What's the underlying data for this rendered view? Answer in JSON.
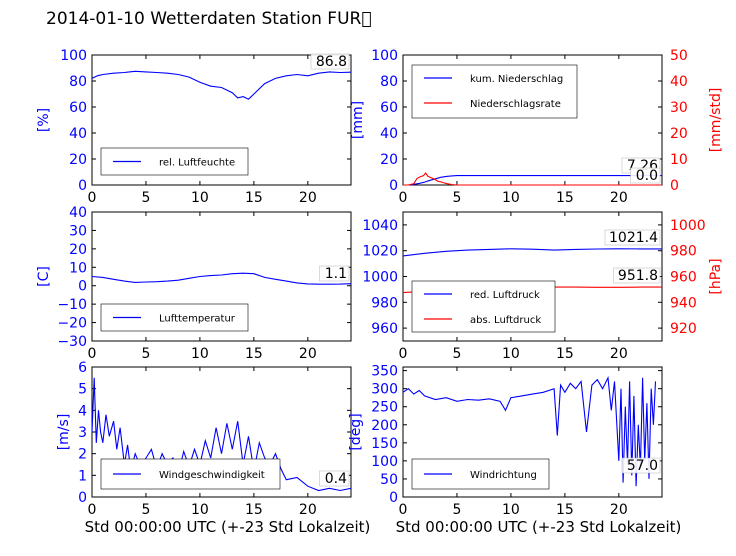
{
  "title": "2014-01-10 Wetterdaten Station FUR\u0000",
  "colors": {
    "blue": "#0000ff",
    "red": "#ff0000",
    "black": "#000000"
  },
  "chart_data": [
    {
      "type": "line",
      "panel": "humidity",
      "ylabel": "[%]",
      "xlabel": "",
      "xlim": [
        0,
        24
      ],
      "ylim": [
        0,
        100
      ],
      "xticks": [
        "0",
        "5",
        "10",
        "15",
        "20"
      ],
      "yticks": [
        "0",
        "20",
        "40",
        "60",
        "80",
        "100"
      ],
      "value_box": "86.8",
      "legend": {
        "placement": "lower-left",
        "entries": [
          "rel. Luftfeuchte"
        ]
      },
      "series": [
        {
          "name": "rel. Luftfeuchte",
          "color": "#0000ff",
          "x": [
            0,
            0.5,
            1,
            2,
            3,
            4,
            5,
            6,
            7,
            8,
            9,
            10,
            11,
            12,
            12.5,
            13,
            13.5,
            14,
            14.5,
            15,
            16,
            17,
            18,
            19,
            20,
            21,
            22,
            23,
            24
          ],
          "y": [
            82,
            84,
            85,
            86,
            86.5,
            87.5,
            87,
            86.5,
            86,
            85,
            83,
            79,
            76,
            75,
            73,
            71,
            67,
            68,
            66,
            70,
            78,
            82,
            84,
            85,
            84,
            86,
            87,
            86.5,
            86.8
          ]
        }
      ]
    },
    {
      "type": "line",
      "panel": "precipitation",
      "ylabel": "[mm]",
      "y2label": "[mm/std]",
      "xlim": [
        0,
        24
      ],
      "ylim": [
        0,
        100
      ],
      "y2lim": [
        0,
        50
      ],
      "xticks": [
        "0",
        "5",
        "10",
        "15",
        "20"
      ],
      "yticks": [
        "0",
        "20",
        "40",
        "60",
        "80",
        "100"
      ],
      "y2ticks": [
        "0",
        "10",
        "20",
        "30",
        "40",
        "50"
      ],
      "value_boxes": [
        "7.26",
        "0.0"
      ],
      "legend": {
        "placement": "upper-left",
        "entries": [
          "kum. Niederschlag",
          "Niederschlagsrate"
        ]
      },
      "series": [
        {
          "name": "kum. Niederschlag",
          "color": "#0000ff",
          "axis": "left",
          "x": [
            0,
            0.5,
            1,
            1.5,
            2,
            2.5,
            3,
            3.5,
            4,
            4.5,
            5,
            6,
            10,
            15,
            20,
            24
          ],
          "y": [
            0,
            0,
            0.5,
            1.2,
            2.2,
            3.6,
            4.8,
            5.9,
            6.6,
            7.0,
            7.2,
            7.26,
            7.26,
            7.26,
            7.26,
            7.26
          ]
        },
        {
          "name": "Niederschlagsrate",
          "color": "#ff0000",
          "axis": "right",
          "x": [
            0,
            0.5,
            1,
            1.3,
            1.6,
            1.9,
            2.1,
            2.3,
            2.6,
            2.9,
            3.2,
            3.5,
            3.8,
            4.1,
            4.5,
            5,
            10,
            15,
            20,
            24
          ],
          "y": [
            0,
            0,
            0.5,
            2.5,
            3.2,
            3.6,
            4.6,
            3.4,
            2.8,
            2.3,
            1.5,
            1.2,
            0.8,
            0.5,
            0.2,
            0,
            0,
            0,
            0,
            0
          ]
        }
      ]
    },
    {
      "type": "line",
      "panel": "temperature",
      "ylabel": "[C]",
      "xlim": [
        0,
        24
      ],
      "ylim": [
        -30,
        40
      ],
      "xticks": [
        "0",
        "5",
        "10",
        "15",
        "20"
      ],
      "yticks": [
        "−30",
        "−20",
        "−10",
        "0",
        "10",
        "20",
        "30",
        "40"
      ],
      "value_box": "1.1",
      "legend": {
        "placement": "lower-left",
        "entries": [
          "Lufttemperatur"
        ]
      },
      "series": [
        {
          "name": "Lufttemperatur",
          "color": "#0000ff",
          "x": [
            0,
            1,
            2,
            3,
            4,
            5,
            6,
            7,
            8,
            9,
            10,
            11,
            12,
            13,
            14,
            15,
            16,
            17,
            18,
            19,
            20,
            21,
            22,
            23,
            24
          ],
          "y": [
            5,
            4.5,
            3.5,
            2.5,
            1.8,
            2,
            2.2,
            2.5,
            3,
            4,
            5,
            5.5,
            5.8,
            6.5,
            6.8,
            6.5,
            4.5,
            3.5,
            2.5,
            1.5,
            1,
            0.8,
            0.8,
            0.9,
            1.1
          ]
        }
      ]
    },
    {
      "type": "line",
      "panel": "pressure",
      "ylabel": "",
      "y2label": "[hPa]",
      "xlim": [
        0,
        24
      ],
      "ylim": [
        950,
        1050
      ],
      "y2lim": [
        910,
        1010
      ],
      "xticks": [
        "0",
        "5",
        "10",
        "15",
        "20"
      ],
      "yticks": [
        "960",
        "980",
        "1000",
        "1020",
        "1040"
      ],
      "y2ticks": [
        "920",
        "940",
        "960",
        "980",
        "1000"
      ],
      "value_boxes": [
        "1021.4",
        "951.8"
      ],
      "legend": {
        "placement": "lower-left",
        "entries": [
          "red. Luftdruck",
          "abs. Luftdruck"
        ]
      },
      "series": [
        {
          "name": "red. Luftdruck",
          "color": "#0000ff",
          "axis": "left",
          "x": [
            0,
            2,
            4,
            6,
            8,
            10,
            12,
            14,
            16,
            18,
            20,
            22,
            24
          ],
          "y": [
            1016,
            1018,
            1019.5,
            1020.5,
            1021,
            1021.5,
            1021.2,
            1020.5,
            1021,
            1021.3,
            1021.5,
            1021.4,
            1021.4
          ]
        },
        {
          "name": "abs. Luftdruck",
          "color": "#ff0000",
          "axis": "right",
          "x": [
            0,
            2,
            4,
            6,
            8,
            10,
            12,
            14,
            16,
            18,
            20,
            22,
            24
          ],
          "y": [
            947.5,
            948.5,
            949.5,
            950.5,
            951.5,
            952.2,
            952.2,
            951.8,
            951.8,
            951.6,
            951.6,
            951.8,
            951.8
          ]
        }
      ]
    },
    {
      "type": "line",
      "panel": "wind_speed",
      "ylabel": "[m/s]",
      "xlabel": "Std 00:00:00 UTC (+-23 Std Lokalzeit)",
      "xlim": [
        0,
        24
      ],
      "ylim": [
        0,
        6
      ],
      "xticks": [
        "0",
        "5",
        "10",
        "15",
        "20"
      ],
      "yticks": [
        "0",
        "1",
        "2",
        "3",
        "4",
        "5",
        "6"
      ],
      "value_box": "0.4",
      "legend": {
        "placement": "lower-left",
        "entries": [
          "Windgeschwindigkeit"
        ]
      },
      "series": [
        {
          "name": "Windgeschwindigkeit",
          "color": "#0000ff",
          "x": [
            0,
            0.2,
            0.4,
            0.6,
            0.8,
            1,
            1.3,
            1.6,
            2,
            2.3,
            2.6,
            3,
            3.3,
            3.6,
            4,
            4.5,
            5,
            5.5,
            6,
            6.5,
            7,
            7.5,
            8,
            8.5,
            9,
            9.5,
            10,
            10.5,
            11,
            11.5,
            12,
            12.5,
            13,
            13.5,
            14,
            14.5,
            15,
            15.5,
            16,
            16.5,
            17,
            17.5,
            18,
            19,
            20,
            21,
            22,
            23,
            24
          ],
          "y": [
            3,
            5.5,
            2.5,
            4,
            3,
            2.5,
            3.8,
            2.8,
            3.5,
            2.2,
            3.2,
            1.5,
            2.4,
            1.2,
            2,
            1.4,
            1.8,
            2.2,
            1.3,
            2,
            1.5,
            1.8,
            1.1,
            2.1,
            1.4,
            2.2,
            1.5,
            2.6,
            1.8,
            3.2,
            2,
            3.4,
            2.2,
            3.5,
            1.5,
            2.8,
            1.2,
            2.5,
            1.8,
            1.5,
            2,
            1.3,
            0.8,
            0.9,
            0.5,
            0.3,
            0.4,
            0.3,
            0.4
          ]
        }
      ]
    },
    {
      "type": "line",
      "panel": "wind_direction",
      "ylabel": "[deg]",
      "xlabel": "Std 00:00:00 UTC (+-23 Std Lokalzeit)",
      "xlim": [
        0,
        24
      ],
      "ylim": [
        0,
        360
      ],
      "xticks": [
        "0",
        "5",
        "10",
        "15",
        "20"
      ],
      "yticks": [
        "0",
        "50",
        "100",
        "150",
        "200",
        "250",
        "300",
        "350"
      ],
      "value_box": "57.0",
      "legend": {
        "placement": "lower-left",
        "entries": [
          "Windrichtung"
        ]
      },
      "series": [
        {
          "name": "Windrichtung",
          "color": "#0000ff",
          "x": [
            0,
            0.5,
            1,
            1.5,
            2,
            3,
            4,
            5,
            6,
            7,
            8,
            9,
            9.5,
            10,
            11,
            12,
            13,
            14,
            14.3,
            14.6,
            15,
            15.5,
            16,
            16.5,
            17,
            17.5,
            18,
            18.5,
            19,
            19.3,
            19.6,
            20,
            20.2,
            20.4,
            20.6,
            20.8,
            21,
            21.2,
            21.4,
            21.6,
            21.8,
            22,
            22.2,
            22.4,
            22.6,
            22.8,
            23,
            23.2,
            23.4
          ],
          "y": [
            290,
            300,
            285,
            295,
            280,
            270,
            275,
            265,
            270,
            268,
            272,
            265,
            240,
            275,
            280,
            285,
            290,
            300,
            170,
            310,
            290,
            315,
            300,
            320,
            180,
            310,
            325,
            300,
            330,
            240,
            320,
            100,
            300,
            40,
            250,
            90,
            320,
            60,
            280,
            30,
            200,
            80,
            330,
            100,
            260,
            50,
            300,
            200,
            320
          ]
        }
      ]
    }
  ]
}
